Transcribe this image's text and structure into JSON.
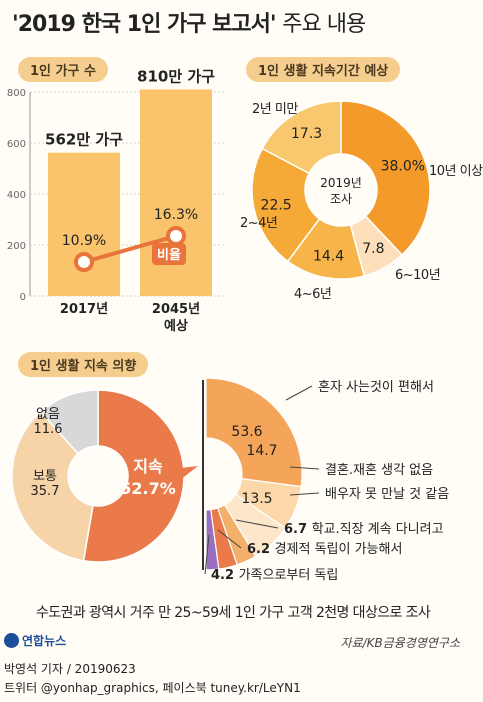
{
  "title": {
    "main": "'2019 한국 1인 가구 보고서'",
    "sub": "주요 내용"
  },
  "sections": {
    "households": "1인 가구 수",
    "duration": "1인 생활 지속기간 예상",
    "intention": "1인 생활 지속 의향"
  },
  "colors": {
    "orange": "#f08a24",
    "lightOrange": "#f9c46b",
    "peach": "#fbd7aa",
    "pale": "#fde9cf",
    "line": "#e8743b",
    "purple": "#9a6fc0",
    "grey": "#d9d9d9"
  },
  "chart_data": [
    {
      "type": "bar",
      "categories": [
        "2017년",
        "2045년 예상"
      ],
      "series": [
        {
          "name": "가구 수",
          "values": [
            562,
            810
          ],
          "labels": [
            "562만 가구",
            "810만 가구"
          ]
        }
      ],
      "line": {
        "name": "비율",
        "values": [
          10.9,
          16.3
        ],
        "labels": [
          "10.9%",
          "16.3%"
        ]
      },
      "yticks": [
        "0",
        "200",
        "400",
        "600",
        "800"
      ],
      "ylim": [
        0,
        800
      ]
    },
    {
      "type": "pie",
      "center": [
        "2019년",
        "조사"
      ],
      "slices": [
        {
          "label": "10년 이상",
          "value": 38.0,
          "text": "38.0%"
        },
        {
          "label": "6~10년",
          "value": 7.8,
          "text": "7.8"
        },
        {
          "label": "4~6년",
          "value": 14.4,
          "text": "14.4"
        },
        {
          "label": "2~4년",
          "value": 22.5,
          "text": "22.5"
        },
        {
          "label": "2년 미만",
          "value": 17.3,
          "text": "17.3"
        }
      ]
    },
    {
      "type": "pie",
      "center": "",
      "slices": [
        {
          "label": "지속",
          "value": 52.7,
          "text": "52.7%"
        },
        {
          "label": "보통",
          "value": 35.7,
          "text": "35.7"
        },
        {
          "label": "없음",
          "value": 11.6,
          "text": "11.6"
        }
      ]
    },
    {
      "type": "pie",
      "slices": [
        {
          "label": "혼자 사는것이 편해서",
          "value": 53.6,
          "text": "53.6"
        },
        {
          "label": "결혼.재혼 생각 없음",
          "value": 14.7,
          "text": "14.7"
        },
        {
          "label": "배우자 못 만날 것 같음",
          "value": 13.5,
          "text": "13.5"
        },
        {
          "label": "학교.직장 계속 다니려고",
          "value": 6.7,
          "text": "6.7"
        },
        {
          "label": "경제적 독립이 가능해서",
          "value": 6.2,
          "text": "6.2"
        },
        {
          "label": "가족으로부터 독립",
          "value": 4.2,
          "text": "4.2"
        }
      ]
    }
  ],
  "footer": {
    "note": "수도권과 광역시 거주 만 25~59세 1인 가구 고객 2천명 대상으로 조사",
    "source": "자료/KB금융경영연구소",
    "logo": "연합뉴스",
    "byline": "박영석 기자 /  20190623",
    "twitter": "트위터 @yonhap_graphics, 페이스북 tuney.kr/LeYN1"
  }
}
